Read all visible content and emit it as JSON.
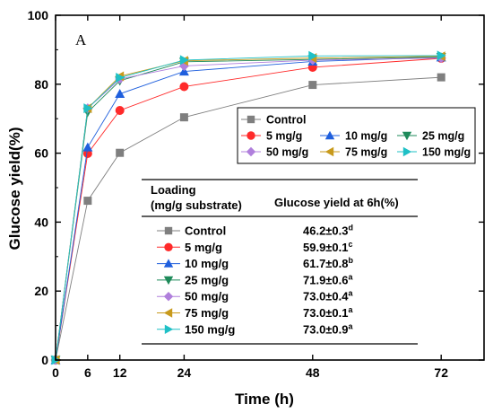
{
  "chart_data": {
    "type": "line",
    "panel_label": "A",
    "xlabel": "Time (h)",
    "ylabel": "Glucose yield(%)",
    "xlim": [
      0,
      80
    ],
    "ylim": [
      0,
      100
    ],
    "xticks": [
      0,
      6,
      12,
      24,
      48,
      72
    ],
    "yticks": [
      0,
      20,
      40,
      60,
      80,
      100
    ],
    "x": [
      0,
      6,
      12,
      24,
      48,
      72
    ],
    "series": [
      {
        "name": "Control",
        "color": "#7f7f7f",
        "marker": "square",
        "values": [
          0,
          46.2,
          60.1,
          70.4,
          79.8,
          82.0
        ]
      },
      {
        "name": "5 mg/g",
        "color": "#ff2a2a",
        "marker": "circle",
        "values": [
          0,
          59.9,
          72.4,
          79.3,
          84.9,
          87.5
        ]
      },
      {
        "name": "10 mg/g",
        "color": "#1f5fdd",
        "marker": "triangle-up",
        "values": [
          0,
          61.7,
          77.2,
          83.7,
          86.6,
          87.8
        ]
      },
      {
        "name": "25 mg/g",
        "color": "#1e8a5a",
        "marker": "triangle-down",
        "values": [
          0,
          71.9,
          81.0,
          86.5,
          87.2,
          87.9
        ]
      },
      {
        "name": "50 mg/g",
        "color": "#b07fdc",
        "marker": "diamond",
        "values": [
          0,
          73.0,
          81.5,
          85.3,
          87.0,
          87.6
        ]
      },
      {
        "name": "75 mg/g",
        "color": "#c89a1c",
        "marker": "triangle-left",
        "values": [
          0,
          73.0,
          82.3,
          86.8,
          87.6,
          88.1
        ]
      },
      {
        "name": "150 mg/g",
        "color": "#1fc0c6",
        "marker": "triangle-right",
        "values": [
          0,
          73.0,
          81.9,
          87.0,
          88.2,
          88.3
        ]
      }
    ],
    "legend": {
      "placement": "center-right",
      "rows": [
        [
          "Control"
        ],
        [
          "5 mg/g",
          "10 mg/g",
          "25 mg/g"
        ],
        [
          "50 mg/g",
          "75 mg/g",
          "150 mg/g"
        ]
      ]
    },
    "table": {
      "header_col1_line1": "Loading",
      "header_col1_line2": "(mg/g substrate)",
      "header_col2": "Glucose yield at 6h(%)",
      "rows": [
        {
          "label": "Control",
          "value": "46.2±0.3",
          "sup": "d"
        },
        {
          "label": "5 mg/g",
          "value": "59.9±0.1",
          "sup": "c"
        },
        {
          "label": "10 mg/g",
          "value": "61.7±0.8",
          "sup": "b"
        },
        {
          "label": "25 mg/g",
          "value": "71.9±0.6",
          "sup": "a"
        },
        {
          "label": "50 mg/g",
          "value": "73.0±0.4",
          "sup": "a"
        },
        {
          "label": "75 mg/g",
          "value": "73.0±0.1",
          "sup": "a"
        },
        {
          "label": "150 mg/g",
          "value": "73.0±0.9",
          "sup": "a"
        }
      ]
    }
  }
}
